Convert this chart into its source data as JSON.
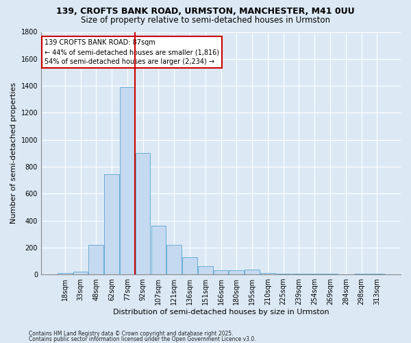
{
  "title1": "139, CROFTS BANK ROAD, URMSTON, MANCHESTER, M41 0UU",
  "title2": "Size of property relative to semi-detached houses in Urmston",
  "xlabel": "Distribution of semi-detached houses by size in Urmston",
  "ylabel": "Number of semi-detached properties",
  "categories": [
    "18sqm",
    "33sqm",
    "48sqm",
    "62sqm",
    "77sqm",
    "92sqm",
    "107sqm",
    "121sqm",
    "136sqm",
    "151sqm",
    "166sqm",
    "180sqm",
    "195sqm",
    "210sqm",
    "225sqm",
    "239sqm",
    "254sqm",
    "269sqm",
    "284sqm",
    "298sqm",
    "313sqm"
  ],
  "values": [
    10,
    20,
    220,
    745,
    1390,
    900,
    360,
    220,
    130,
    60,
    30,
    30,
    35,
    10,
    5,
    5,
    5,
    3,
    2,
    5,
    5
  ],
  "bar_color": "#c5d9f0",
  "bar_edge_color": "#6aaed6",
  "vline_color": "#cc0000",
  "vline_xindex": 4.5,
  "annotation_title": "139 CROFTS BANK ROAD: 87sqm",
  "annotation_line1": "← 44% of semi-detached houses are smaller (1,816)",
  "annotation_line2": "54% of semi-detached houses are larger (2,234) →",
  "annotation_box_facecolor": "#ffffff",
  "annotation_box_edgecolor": "#cc0000",
  "ylim": [
    0,
    1800
  ],
  "yticks": [
    0,
    200,
    400,
    600,
    800,
    1000,
    1200,
    1400,
    1600,
    1800
  ],
  "footnote1": "Contains HM Land Registry data © Crown copyright and database right 2025.",
  "footnote2": "Contains public sector information licensed under the Open Government Licence v3.0.",
  "background_color": "#dce9f5",
  "grid_color": "#ffffff",
  "title1_fontsize": 9,
  "title2_fontsize": 8.5,
  "xlabel_fontsize": 8,
  "ylabel_fontsize": 8,
  "tick_fontsize": 7,
  "annot_fontsize": 7,
  "footnote_fontsize": 5.5
}
